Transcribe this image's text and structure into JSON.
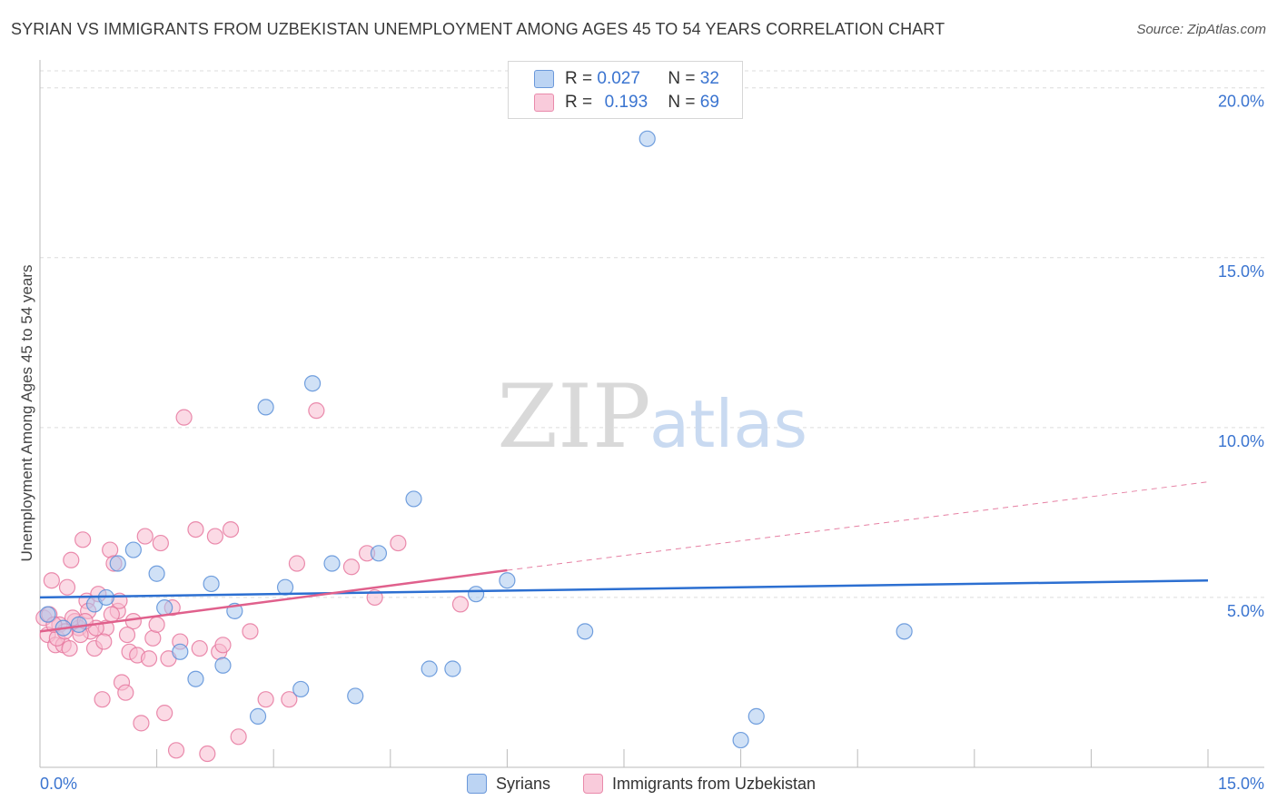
{
  "title": "SYRIAN VS IMMIGRANTS FROM UZBEKISTAN UNEMPLOYMENT AMONG AGES 45 TO 54 YEARS CORRELATION CHART",
  "source": "Source: ZipAtlas.com",
  "watermark": {
    "zip": "ZIP",
    "atlas": "atlas"
  },
  "legend_top": {
    "rows": [
      {
        "r_label": "R =",
        "r_value": "0.027",
        "n_label": "N =",
        "n_value": "32"
      },
      {
        "r_label": "R =",
        "r_value": "0.193",
        "n_label": "N =",
        "n_value": "69"
      }
    ]
  },
  "colors": {
    "syrians_fill": "#a9c8ef",
    "syrians_stroke": "#5b8fd8",
    "syrians_line": "#2c6fd1",
    "uzbek_fill": "#f7bcd0",
    "uzbek_stroke": "#e6789f",
    "uzbek_line": "#e0608c",
    "axis_text": "#3a74d0",
    "grid": "#dcdcdc"
  },
  "chart_data": {
    "type": "scatter",
    "title": "SYRIAN VS IMMIGRANTS FROM UZBEKISTAN UNEMPLOYMENT AMONG AGES 45 TO 54 YEARS CORRELATION CHART",
    "xlabel": "",
    "ylabel": "Unemployment Among Ages 45 to 54 years",
    "xlim": [
      0,
      15
    ],
    "ylim": [
      0,
      20.5
    ],
    "x_tick_labels": [
      "0.0%",
      "15.0%"
    ],
    "y_tick_values": [
      5,
      10,
      15,
      20
    ],
    "y_tick_labels": [
      "5.0%",
      "10.0%",
      "15.0%",
      "20.0%"
    ],
    "grid": true,
    "legend_position": "top-center",
    "series": [
      {
        "name": "Syrians",
        "points": [
          [
            0.1,
            4.5
          ],
          [
            0.3,
            4.1
          ],
          [
            0.5,
            4.2
          ],
          [
            0.7,
            4.8
          ],
          [
            0.85,
            5.0
          ],
          [
            1.0,
            6.0
          ],
          [
            1.2,
            6.4
          ],
          [
            1.5,
            5.7
          ],
          [
            1.6,
            4.7
          ],
          [
            1.8,
            3.4
          ],
          [
            2.0,
            2.6
          ],
          [
            2.2,
            5.4
          ],
          [
            2.35,
            3.0
          ],
          [
            2.5,
            4.6
          ],
          [
            2.8,
            1.5
          ],
          [
            2.9,
            10.6
          ],
          [
            3.15,
            5.3
          ],
          [
            3.35,
            2.3
          ],
          [
            3.5,
            11.3
          ],
          [
            3.75,
            6.0
          ],
          [
            4.05,
            2.1
          ],
          [
            4.35,
            6.3
          ],
          [
            4.8,
            7.9
          ],
          [
            5.0,
            2.9
          ],
          [
            5.3,
            2.9
          ],
          [
            5.6,
            5.1
          ],
          [
            6.0,
            5.5
          ],
          [
            7.0,
            4.0
          ],
          [
            7.8,
            18.5
          ],
          [
            9.0,
            0.8
          ],
          [
            9.2,
            1.5
          ],
          [
            11.1,
            4.0
          ]
        ],
        "trend": {
          "x": [
            0,
            15
          ],
          "y": [
            5.0,
            5.5
          ]
        }
      },
      {
        "name": "Immigrants from Uzbekistan",
        "points": [
          [
            0.05,
            4.4
          ],
          [
            0.1,
            3.9
          ],
          [
            0.15,
            5.5
          ],
          [
            0.2,
            3.6
          ],
          [
            0.25,
            4.2
          ],
          [
            0.3,
            3.6
          ],
          [
            0.35,
            5.3
          ],
          [
            0.4,
            6.1
          ],
          [
            0.45,
            4.3
          ],
          [
            0.5,
            4.1
          ],
          [
            0.55,
            6.7
          ],
          [
            0.6,
            4.9
          ],
          [
            0.65,
            4.0
          ],
          [
            0.7,
            3.5
          ],
          [
            0.75,
            5.1
          ],
          [
            0.8,
            2.0
          ],
          [
            0.85,
            4.1
          ],
          [
            0.9,
            6.4
          ],
          [
            0.95,
            6.0
          ],
          [
            1.0,
            4.6
          ],
          [
            1.05,
            2.5
          ],
          [
            1.1,
            2.2
          ],
          [
            1.15,
            3.4
          ],
          [
            1.2,
            4.3
          ],
          [
            1.25,
            3.3
          ],
          [
            1.3,
            1.3
          ],
          [
            1.35,
            6.8
          ],
          [
            1.4,
            3.2
          ],
          [
            1.45,
            3.8
          ],
          [
            1.5,
            4.2
          ],
          [
            1.55,
            6.6
          ],
          [
            1.6,
            1.6
          ],
          [
            1.65,
            3.2
          ],
          [
            1.7,
            4.7
          ],
          [
            1.75,
            0.5
          ],
          [
            1.8,
            3.7
          ],
          [
            1.85,
            10.3
          ],
          [
            2.0,
            7.0
          ],
          [
            2.05,
            3.5
          ],
          [
            2.15,
            0.4
          ],
          [
            2.25,
            6.8
          ],
          [
            2.3,
            3.4
          ],
          [
            2.35,
            3.6
          ],
          [
            2.45,
            7.0
          ],
          [
            2.55,
            0.9
          ],
          [
            2.7,
            4.0
          ],
          [
            2.9,
            2.0
          ],
          [
            3.2,
            2.0
          ],
          [
            3.3,
            6.0
          ],
          [
            3.55,
            10.5
          ],
          [
            4.0,
            5.9
          ],
          [
            4.2,
            6.3
          ],
          [
            4.3,
            5.0
          ],
          [
            4.6,
            6.6
          ],
          [
            5.4,
            4.8
          ],
          [
            0.12,
            4.5
          ],
          [
            0.22,
            3.8
          ],
          [
            0.32,
            4.0
          ],
          [
            0.42,
            4.4
          ],
          [
            0.52,
            3.9
          ],
          [
            0.62,
            4.6
          ],
          [
            0.72,
            4.1
          ],
          [
            0.82,
            3.7
          ],
          [
            0.92,
            4.5
          ],
          [
            1.02,
            4.9
          ],
          [
            1.12,
            3.9
          ],
          [
            0.18,
            4.2
          ],
          [
            0.38,
            3.5
          ],
          [
            0.58,
            4.3
          ]
        ],
        "trend": {
          "x": [
            0,
            6
          ],
          "y": [
            4.0,
            5.8
          ]
        },
        "trend_extension": {
          "x": [
            6,
            15
          ],
          "y": [
            5.8,
            8.4
          ]
        }
      }
    ]
  },
  "legend_bottom": {
    "items": [
      "Syrians",
      "Immigrants from Uzbekistan"
    ]
  }
}
